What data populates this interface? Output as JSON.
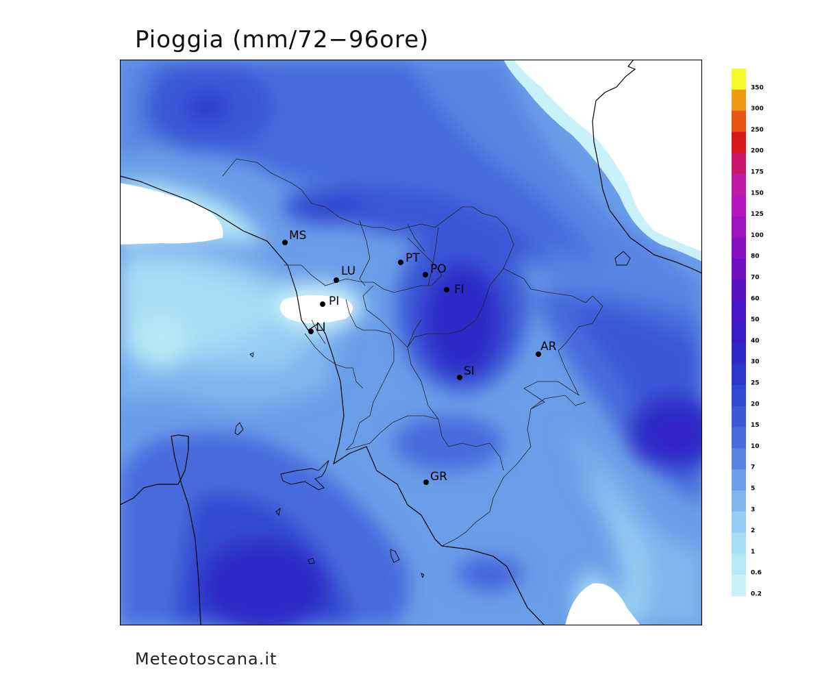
{
  "title": "Pioggia (mm/72−96ore)",
  "footer": "Meteotoscana.it",
  "legend": {
    "levels": [
      {
        "label": "350",
        "color": "#f6f92a"
      },
      {
        "label": "300",
        "color": "#ec9a15"
      },
      {
        "label": "250",
        "color": "#e65511"
      },
      {
        "label": "200",
        "color": "#d4181c"
      },
      {
        "label": "175",
        "color": "#c8176c"
      },
      {
        "label": "150",
        "color": "#bf1aa6"
      },
      {
        "label": "125",
        "color": "#b616bd"
      },
      {
        "label": "100",
        "color": "#9f13bf"
      },
      {
        "label": "80",
        "color": "#8710bf"
      },
      {
        "label": "70",
        "color": "#700fc0"
      },
      {
        "label": "60",
        "color": "#5a12c0"
      },
      {
        "label": "50",
        "color": "#4816c8"
      },
      {
        "label": "40",
        "color": "#3a1dc6"
      },
      {
        "label": "30",
        "color": "#2e29c8"
      },
      {
        "label": "25",
        "color": "#2a36cc"
      },
      {
        "label": "20",
        "color": "#3048d0"
      },
      {
        "label": "15",
        "color": "#3b57d6"
      },
      {
        "label": "10",
        "color": "#4a6bdc"
      },
      {
        "label": "7",
        "color": "#5984e2"
      },
      {
        "label": "5",
        "color": "#6a9ee8"
      },
      {
        "label": "3",
        "color": "#7fb6ee"
      },
      {
        "label": "2",
        "color": "#95ccf3"
      },
      {
        "label": "1",
        "color": "#a9dcf5"
      },
      {
        "label": "0.6",
        "color": "#b8e7f7"
      },
      {
        "label": "0.2",
        "color": "#c9f1f9"
      }
    ]
  },
  "cities": [
    {
      "label": "MS"
    },
    {
      "label": "LU"
    },
    {
      "label": "PT"
    },
    {
      "label": "PO"
    },
    {
      "label": "FI"
    },
    {
      "label": "PI"
    },
    {
      "label": "LI"
    },
    {
      "label": "AR"
    },
    {
      "label": "SI"
    },
    {
      "label": "GR"
    }
  ]
}
